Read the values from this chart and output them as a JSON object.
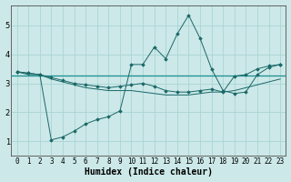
{
  "xlabel": "Humidex (Indice chaleur)",
  "background_color": "#cce8e8",
  "grid_color": "#aad4d4",
  "line_color": "#1a6868",
  "hline_color": "#1a9090",
  "x_data": [
    0,
    1,
    2,
    3,
    4,
    5,
    6,
    7,
    8,
    9,
    10,
    11,
    12,
    13,
    14,
    15,
    16,
    17,
    18,
    19,
    20,
    21,
    22,
    23
  ],
  "line_peak": [
    3.4,
    3.35,
    3.3,
    1.05,
    1.15,
    1.35,
    1.6,
    1.75,
    1.85,
    2.05,
    3.65,
    3.65,
    4.25,
    3.85,
    4.7,
    5.35,
    4.55,
    3.5,
    2.75,
    2.65,
    2.7,
    3.3,
    3.55,
    3.65
  ],
  "line_flat": [
    3.4,
    3.35,
    3.3,
    3.2,
    3.1,
    3.0,
    2.95,
    2.9,
    2.85,
    2.9,
    2.95,
    3.0,
    2.9,
    2.75,
    2.7,
    2.7,
    2.75,
    2.8,
    2.7,
    3.25,
    3.3,
    3.5,
    3.6,
    3.65
  ],
  "line_diag": [
    3.4,
    3.3,
    3.3,
    3.15,
    3.05,
    2.95,
    2.85,
    2.8,
    2.75,
    2.75,
    2.75,
    2.7,
    2.65,
    2.6,
    2.6,
    2.6,
    2.65,
    2.7,
    2.7,
    2.75,
    2.85,
    2.95,
    3.05,
    3.15
  ],
  "hline_y": 3.27,
  "ylim": [
    0.5,
    5.7
  ],
  "xlim": [
    -0.5,
    23.5
  ],
  "yticks": [
    1,
    2,
    3,
    4,
    5
  ],
  "xticks": [
    0,
    1,
    2,
    3,
    4,
    5,
    6,
    7,
    8,
    9,
    10,
    11,
    12,
    13,
    14,
    15,
    16,
    17,
    18,
    19,
    20,
    21,
    22,
    23
  ],
  "tick_fontsize": 5.5,
  "label_fontsize": 7
}
